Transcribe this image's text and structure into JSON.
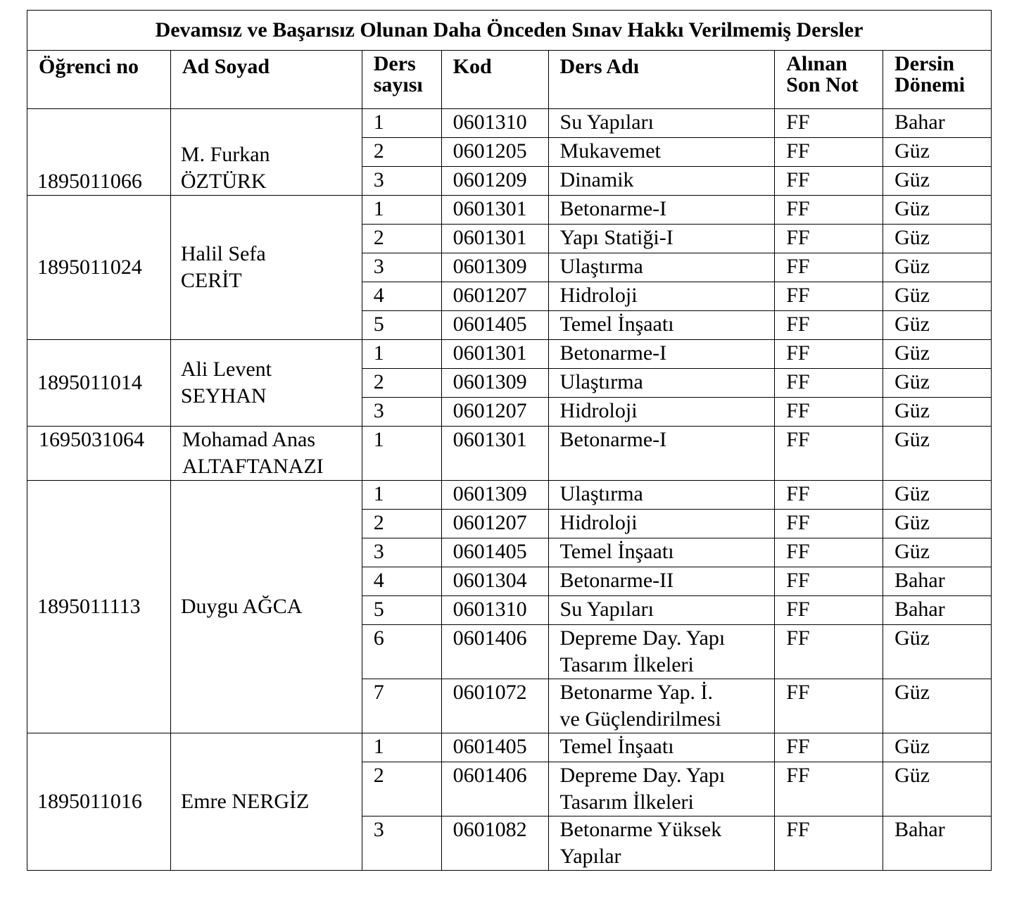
{
  "title": "Devamsız ve Başarısız Olunan Daha Önceden Sınav Hakkı Verilmemiş Dersler",
  "headers": {
    "student_no": "Öğrenci no",
    "name": "Ad Soyad",
    "count_line1": "Ders",
    "count_line2": "sayısı",
    "code": "Kod",
    "course": "Ders Adı",
    "grade_line1": "Alınan",
    "grade_line2": "Son Not",
    "term_line1": "Dersin",
    "term_line2": "Dönemi"
  },
  "students": [
    {
      "no": "1895011066",
      "name_lines": [
        "M. Furkan",
        "ÖZTÜRK"
      ],
      "courses": [
        {
          "n": "1",
          "code": "0601310",
          "course_lines": [
            "Su Yapıları"
          ],
          "grade": "FF",
          "term": "Bahar"
        },
        {
          "n": "2",
          "code": "0601205",
          "course_lines": [
            "Mukavemet"
          ],
          "grade": "FF",
          "term": "Güz"
        },
        {
          "n": "3",
          "code": "0601209",
          "course_lines": [
            "Dinamik"
          ],
          "grade": "FF",
          "term": "Güz"
        }
      ]
    },
    {
      "no": "1895011024",
      "name_lines": [
        "Halil Sefa",
        "CERİT"
      ],
      "courses": [
        {
          "n": "1",
          "code": "0601301",
          "course_lines": [
            "Betonarme-I"
          ],
          "grade": "FF",
          "term": "Güz"
        },
        {
          "n": "2",
          "code": "0601301",
          "course_lines": [
            "Yapı Statiği-I"
          ],
          "grade": "FF",
          "term": "Güz"
        },
        {
          "n": "3",
          "code": "0601309",
          "course_lines": [
            "Ulaştırma"
          ],
          "grade": "FF",
          "term": "Güz"
        },
        {
          "n": "4",
          "code": "0601207",
          "course_lines": [
            "Hidroloji"
          ],
          "grade": "FF",
          "term": "Güz"
        },
        {
          "n": "5",
          "code": "0601405",
          "course_lines": [
            "Temel İnşaatı"
          ],
          "grade": "FF",
          "term": "Güz"
        }
      ]
    },
    {
      "no": "1895011014",
      "name_lines": [
        "Ali Levent",
        "SEYHAN"
      ],
      "courses": [
        {
          "n": "1",
          "code": "0601301",
          "course_lines": [
            "Betonarme-I"
          ],
          "grade": "FF",
          "term": "Güz"
        },
        {
          "n": "2",
          "code": "0601309",
          "course_lines": [
            "Ulaştırma"
          ],
          "grade": "FF",
          "term": "Güz"
        },
        {
          "n": "3",
          "code": "0601207",
          "course_lines": [
            "Hidroloji"
          ],
          "grade": "FF",
          "term": "Güz"
        }
      ]
    },
    {
      "no": "1695031064",
      "name_lines": [
        "Mohamad Anas",
        "ALTAFTANAZI"
      ],
      "courses": [
        {
          "n": "1",
          "code": "0601301",
          "course_lines": [
            "Betonarme-I"
          ],
          "grade": "FF",
          "term": "Güz"
        }
      ]
    },
    {
      "no": "1895011113",
      "name_lines": [
        "Duygu AĞCA"
      ],
      "courses": [
        {
          "n": "1",
          "code": "0601309",
          "course_lines": [
            "Ulaştırma"
          ],
          "grade": "FF",
          "term": "Güz"
        },
        {
          "n": "2",
          "code": "0601207",
          "course_lines": [
            "Hidroloji"
          ],
          "grade": "FF",
          "term": "Güz"
        },
        {
          "n": "3",
          "code": "0601405",
          "course_lines": [
            "Temel İnşaatı"
          ],
          "grade": "FF",
          "term": "Güz"
        },
        {
          "n": "4",
          "code": "0601304",
          "course_lines": [
            "Betonarme-II"
          ],
          "grade": "FF",
          "term": "Bahar"
        },
        {
          "n": "5",
          "code": "0601310",
          "course_lines": [
            "Su Yapıları"
          ],
          "grade": "FF",
          "term": "Bahar"
        },
        {
          "n": "6",
          "code": "0601406",
          "course_lines": [
            "Depreme Day. Yapı",
            "Tasarım İlkeleri"
          ],
          "grade": "FF",
          "term": "Güz"
        },
        {
          "n": "7",
          "code": "0601072",
          "course_lines": [
            "Betonarme Yap. İ.",
            "ve Güçlendirilmesi"
          ],
          "grade": "FF",
          "term": "Güz"
        }
      ]
    },
    {
      "no": "1895011016",
      "name_lines": [
        "Emre NERGİZ"
      ],
      "courses": [
        {
          "n": "1",
          "code": "0601405",
          "course_lines": [
            "Temel İnşaatı"
          ],
          "grade": "FF",
          "term": "Güz"
        },
        {
          "n": "2",
          "code": "0601406",
          "course_lines": [
            "Depreme Day. Yapı",
            "Tasarım İlkeleri"
          ],
          "grade": "FF",
          "term": "Güz"
        },
        {
          "n": "3",
          "code": "0601082",
          "course_lines": [
            "Betonarme Yüksek",
            "Yapılar"
          ],
          "grade": "FF",
          "term": "Bahar"
        }
      ]
    }
  ]
}
